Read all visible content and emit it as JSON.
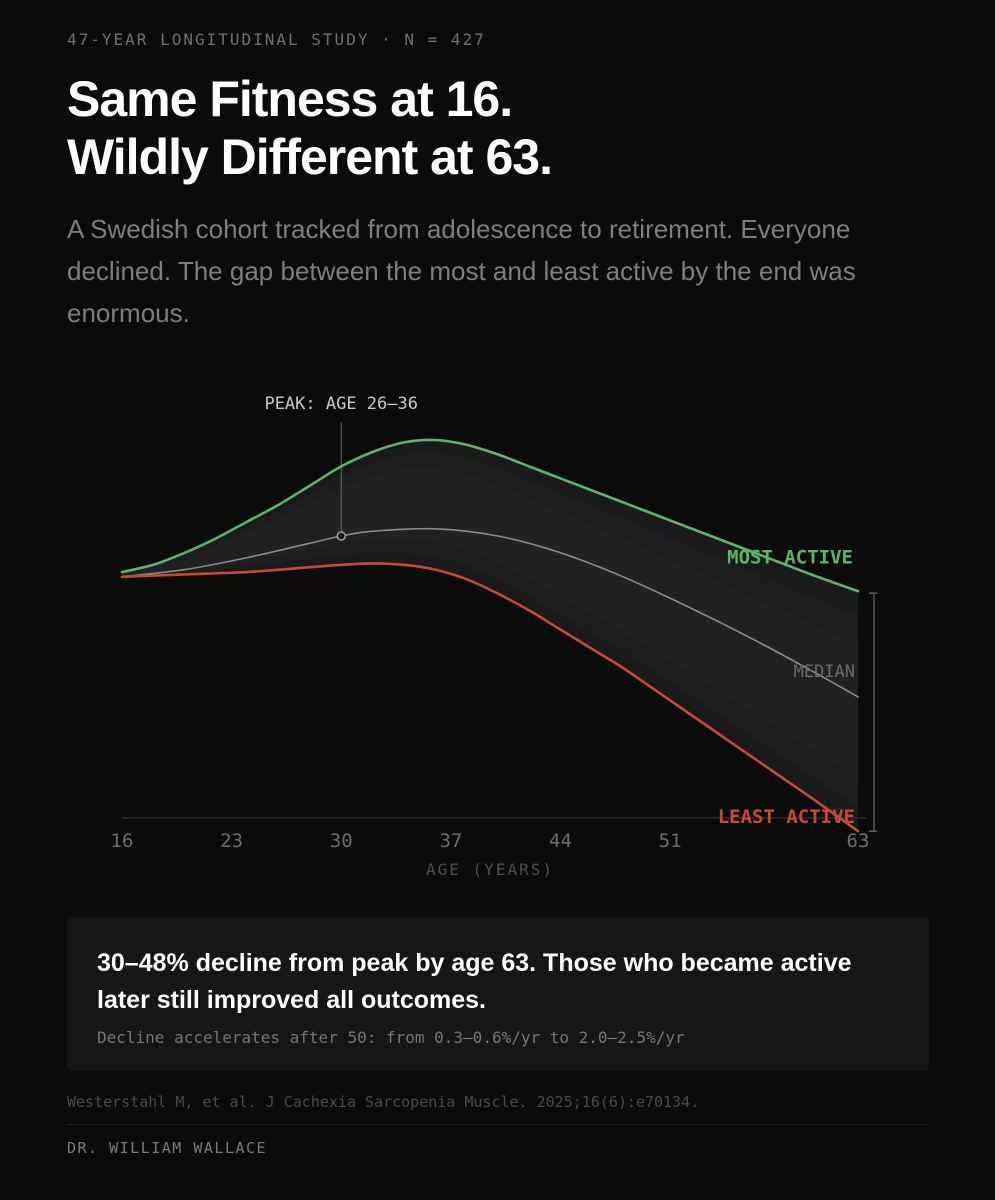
{
  "header": {
    "eyebrow": "47-YEAR LONGITUDINAL STUDY · N = 427",
    "title_line1": "Same Fitness at 16.",
    "title_line2": "Wildly Different at 63.",
    "subtitle": "A Swedish cohort tracked from adolescence to retirement. Everyone declined. The gap between the most and least active by the end was enormous."
  },
  "chart_data": {
    "type": "area",
    "xlabel": "AGE (YEARS)",
    "ylabel": "",
    "xticks": [
      16,
      23,
      30,
      37,
      44,
      51,
      63
    ],
    "xlim": [
      16,
      63
    ],
    "ylim": [
      0,
      100
    ],
    "grid": false,
    "annotation": {
      "label": "PEAK: AGE 26–36",
      "x": 30
    },
    "series": [
      {
        "name": "MOST ACTIVE",
        "color": "#5db36d",
        "x": [
          16,
          18,
          20,
          22,
          24,
          26,
          28,
          30,
          32,
          34,
          36,
          38,
          40,
          42,
          44,
          46,
          48,
          50,
          52,
          54,
          56,
          58,
          60,
          63
        ],
        "y": [
          60,
          61.5,
          64,
          67,
          70.5,
          74,
          78,
          82,
          85,
          87,
          87.5,
          86.5,
          84.5,
          82,
          79.5,
          77,
          74.5,
          72,
          69.5,
          67,
          64.5,
          62,
          59.5,
          56
        ]
      },
      {
        "name": "MEDIAN",
        "color": "#8a8a8a",
        "x": [
          16,
          20,
          24,
          28,
          30,
          32,
          36,
          40,
          44,
          48,
          52,
          56,
          60,
          63
        ],
        "y": [
          59,
          60.5,
          63,
          66,
          67.5,
          68.5,
          69,
          67.5,
          64,
          59,
          53,
          46.5,
          39.5,
          34
        ]
      },
      {
        "name": "LEAST ACTIVE",
        "color": "#c7493b",
        "x": [
          16,
          20,
          24,
          28,
          30,
          32,
          34,
          36,
          38,
          40,
          42,
          44,
          46,
          48,
          50,
          52,
          54,
          56,
          58,
          60,
          63
        ],
        "y": [
          59,
          59.5,
          60,
          61,
          61.5,
          61.8,
          61.5,
          60.5,
          58.5,
          55.5,
          52,
          48,
          44,
          40,
          35.5,
          31,
          26.5,
          22,
          17.5,
          13,
          6
        ]
      }
    ]
  },
  "callout": {
    "headline": "30–48% decline from peak by age 63. Those who became active later still improved all outcomes.",
    "note": "Decline accelerates after 50: from 0.3–0.6%/yr to 2.0–2.5%/yr"
  },
  "footer": {
    "citation": "Westerstahl M, et al. J Cachexia Sarcopenia Muscle. 2025;16(6):e70134.",
    "author": "DR. WILLIAM WALLACE"
  }
}
